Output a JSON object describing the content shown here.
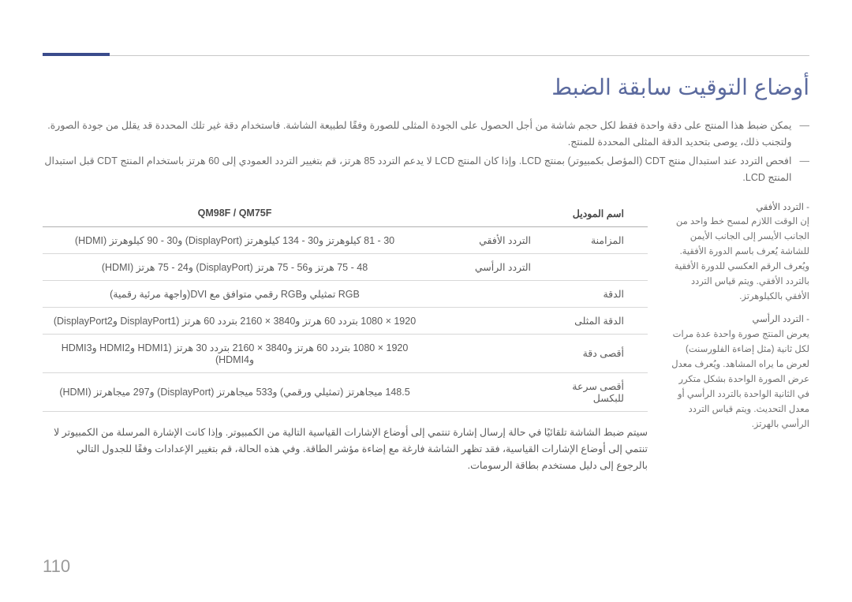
{
  "page_number": "110",
  "title": "أوضاع التوقيت سابقة الضبط",
  "notes": [
    "يمكن ضبط هذا المنتج على دقة واحدة فقط لكل حجم شاشة من أجل الحصول على الجودة المثلى للصورة وفقًا لطبيعة الشاشة. فاستخدام دقة غير تلك المحددة قد يقلل من جودة الصورة. ولتجنب ذلك، يوصى بتحديد الدقة المثلى المحددة للمنتج.",
    "افحص التردد عند استبدال منتج CDT (المؤصل بكمبيوتر) بمنتج LCD. وإذا كان المنتج LCD لا يدعم التردد 85 هرتز، قم بتغيير التردد العمودي إلى 60 هرتز باستخدام المنتج CDT قبل استبدال المنتج LCD."
  ],
  "sidebar": [
    {
      "label": "التردد الأفقي",
      "desc": "إن الوقت اللازم لمسح خط واحد من الجانب الأيسر إلى الجانب الأيمن للشاشة يُعرف باسم الدورة الأفقية. ويُعرف الرقم العكسي للدورة الأفقية بالتردد الأفقي. ويتم قياس التردد الأفقي بالكيلوهرتز."
    },
    {
      "label": "التردد الرأسي",
      "desc": "يعرض المنتج صورة واحدة عدة مرات لكل ثانية (مثل إضاءة الفلورسنت) لعرض ما يراه المشاهد. ويُعرف معدل عرض الصورة الواحدة بشكل متكرر في الثانية الواحدة بالتردد الرأسي أو معدل التحديث. ويتم قياس التردد الرأسي بالهرتز."
    }
  ],
  "table": {
    "headers": {
      "model": "اسم الموديل",
      "product": "QM98F / QM75F"
    },
    "rows": [
      {
        "label": "المزامنة",
        "sub": "التردد الأفقي",
        "value": "30 - 81 كيلوهرتز و30 - 134 كيلوهرتز (DisplayPort) و30 - 90 كيلوهرتز (HDMI)"
      },
      {
        "label": "",
        "sub": "التردد الرأسي",
        "value": "48 - 75 هرتز و56 - 75 هرتز (DisplayPort) و24 - 75 هرتز (HDMI)"
      },
      {
        "label": "الدقة",
        "sub": "",
        "value": "RGB تمثيلي وRGB رقمي متوافق مع DVI(واجهة مرئية رقمية)"
      },
      {
        "label": "الدقة المثلى",
        "sub": "",
        "value": "1920 × 1080 بتردد 60 هرتز و3840 × 2160 بتردد 60 هرتز (DisplayPort1 وDisplayPort2)"
      },
      {
        "label": "أقصى دقة",
        "sub": "",
        "value": "1920 × 1080 بتردد 60 هرتز و3840 × 2160 بتردد 30 هرتز (HDMI1 وHDMI2 وHDMI3 وHDMI4)"
      },
      {
        "label": "أقصى سرعة للبكسل",
        "sub": "",
        "value": "148.5 ميجاهرتز (تمثيلي ورقمي) و533 ميجاهرتز (DisplayPort) و297 ميجاهرتز (HDMI)"
      }
    ]
  },
  "bottom_note": "سيتم ضبط الشاشة تلقائيًا في حالة إرسال إشارة تنتمي إلى أوضاع الإشارات القياسية التالية من الكمبيوتر. وإذا كانت الإشارة المرسلة من الكمبيوتر لا تنتمي إلى أوضاع الإشارات القياسية، فقد تظهر الشاشة فارغة مع إضاءة مؤشر الطاقة. وفي هذه الحالة، قم بتغيير الإعدادات وفقًا للجدول التالي بالرجوع إلى دليل مستخدم بطاقة الرسومات.",
  "colors": {
    "title": "#5b6a9e",
    "accent": "#3a4b8c",
    "text": "#4a4a4a",
    "muted": "#6a6a6a",
    "border": "#d8d8d8"
  }
}
